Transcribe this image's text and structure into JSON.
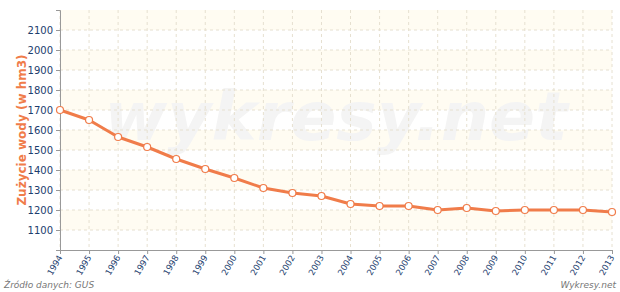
{
  "chart_data": {
    "type": "line",
    "y_label": "Zużycie wody (w hm3)",
    "annotations": [
      "Źródło danych:  GUS",
      "Wykresy.net",
      "wykresy.net"
    ],
    "x": [
      1994,
      1995,
      1996,
      1997,
      1998,
      1999,
      2000,
      2001,
      2002,
      2003,
      2004,
      2005,
      2006,
      2007,
      2008,
      2009,
      2010,
      2011,
      2012,
      2013
    ],
    "values": [
      1700,
      1650,
      1565,
      1515,
      1455,
      1405,
      1360,
      1310,
      1285,
      1270,
      1230,
      1220,
      1220,
      1200,
      1210,
      1195,
      1200,
      1200,
      1200,
      1190
    ],
    "color": "#f07c4a",
    "marker": "circle",
    "xlim": [
      1994,
      2013
    ],
    "xticks": [
      1994,
      1995,
      1996,
      1997,
      1998,
      1999,
      2000,
      2001,
      2002,
      2003,
      2004,
      2005,
      2006,
      2007,
      2008,
      2009,
      2010,
      2011,
      2012,
      2013
    ],
    "ylim": [
      1000,
      2200
    ],
    "yticks": [
      1100,
      1200,
      1300,
      1400,
      1500,
      1600,
      1700,
      1800,
      1900,
      2000,
      2100
    ],
    "grid": true
  }
}
